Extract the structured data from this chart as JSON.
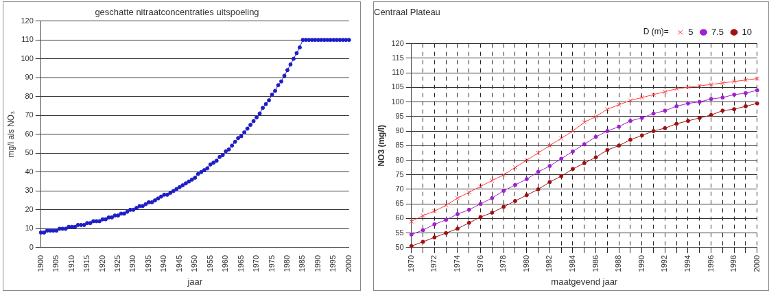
{
  "chart_data": [
    {
      "type": "line",
      "title": "geschatte nitraatconcentraties uitspoeling",
      "xlabel": "jaar",
      "ylabel": "mg/l als NO₃",
      "marker": "circle",
      "grid": "y",
      "xlim": [
        1900,
        2000
      ],
      "xticks": [
        1900,
        1905,
        1910,
        1915,
        1920,
        1925,
        1930,
        1935,
        1940,
        1945,
        1950,
        1955,
        1960,
        1965,
        1970,
        1975,
        1980,
        1985,
        1990,
        1995,
        2000
      ],
      "ylim": [
        0,
        120
      ],
      "yticks": [
        0,
        10,
        20,
        30,
        40,
        50,
        60,
        70,
        80,
        90,
        100,
        110,
        120
      ],
      "x": [
        1900,
        1901,
        1902,
        1903,
        1904,
        1905,
        1906,
        1907,
        1908,
        1909,
        1910,
        1911,
        1912,
        1913,
        1914,
        1915,
        1916,
        1917,
        1918,
        1919,
        1920,
        1921,
        1922,
        1923,
        1924,
        1925,
        1926,
        1927,
        1928,
        1929,
        1930,
        1931,
        1932,
        1933,
        1934,
        1935,
        1936,
        1937,
        1938,
        1939,
        1940,
        1941,
        1942,
        1943,
        1944,
        1945,
        1946,
        1947,
        1948,
        1949,
        1950,
        1951,
        1952,
        1953,
        1954,
        1955,
        1956,
        1957,
        1958,
        1959,
        1960,
        1961,
        1962,
        1963,
        1964,
        1965,
        1966,
        1967,
        1968,
        1969,
        1970,
        1971,
        1972,
        1973,
        1974,
        1975,
        1976,
        1977,
        1978,
        1979,
        1980,
        1981,
        1982,
        1983,
        1984,
        1985,
        1986,
        1987,
        1988,
        1989,
        1990,
        1991,
        1992,
        1993,
        1994,
        1995,
        1996,
        1997,
        1998,
        1999,
        2000
      ],
      "series": [
        {
          "color": "#1e1ec8",
          "values": [
            8,
            8,
            9,
            9,
            9,
            9,
            10,
            10,
            10,
            11,
            11,
            11,
            12,
            12,
            12,
            13,
            13,
            14,
            14,
            14,
            15,
            15,
            16,
            16,
            17,
            17,
            18,
            18,
            19,
            20,
            20,
            21,
            22,
            22,
            23,
            24,
            24,
            25,
            26,
            27,
            28,
            28,
            29,
            30,
            31,
            32,
            33,
            34,
            35,
            36,
            37,
            39,
            40,
            41,
            42,
            44,
            45,
            46,
            48,
            49,
            51,
            52,
            54,
            56,
            58,
            59,
            61,
            63,
            65,
            67,
            69,
            71,
            74,
            76,
            78,
            81,
            83,
            86,
            88,
            91,
            94,
            97,
            100,
            103,
            106,
            110,
            110,
            110,
            110,
            110,
            110,
            110,
            110,
            110,
            110,
            110,
            110,
            110,
            110,
            110,
            110
          ]
        }
      ]
    },
    {
      "type": "line",
      "title": "Centraal Plateau",
      "xlabel": "maatgevend jaar",
      "ylabel": "NO3 (mg/l)",
      "legend_title": "D (m)=",
      "legend": "top right",
      "grid": true,
      "xlim": [
        1970,
        2000
      ],
      "xticks": [
        1970,
        {
          "value": 1971,
          "label": null
        },
        1972,
        {
          "value": 1973,
          "label": null
        },
        1974,
        {
          "value": 1975,
          "label": null
        },
        1976,
        {
          "value": 1977,
          "label": null
        },
        1978,
        {
          "value": 1979,
          "label": null
        },
        1980,
        {
          "value": 1981,
          "label": null
        },
        1982,
        {
          "value": 1983,
          "label": null
        },
        1984,
        {
          "value": 1985,
          "label": null
        },
        1986,
        {
          "value": 1987,
          "label": null
        },
        1988,
        {
          "value": 1989,
          "label": null
        },
        1990,
        {
          "value": 1991,
          "label": null
        },
        1992,
        {
          "value": 1993,
          "label": null
        },
        1994,
        {
          "value": 1995,
          "label": null
        },
        1996,
        {
          "value": 1997,
          "label": null
        },
        1998,
        {
          "value": 1999,
          "label": null
        },
        2000
      ],
      "ylim": [
        50,
        120
      ],
      "yticks": [
        50,
        55,
        60,
        65,
        70,
        75,
        80,
        85,
        90,
        95,
        100,
        105,
        110,
        115,
        120
      ],
      "x": [
        1970,
        1971,
        1972,
        1973,
        1974,
        1975,
        1976,
        1977,
        1978,
        1979,
        1980,
        1981,
        1982,
        1983,
        1984,
        1985,
        1986,
        1987,
        1988,
        1989,
        1990,
        1991,
        1992,
        1993,
        1994,
        1995,
        1996,
        1997,
        1998,
        1999,
        2000
      ],
      "series": [
        {
          "name": "5",
          "color": "#ff3c3c",
          "marker": "cross",
          "values": [
            59,
            61,
            62.5,
            64.5,
            67,
            69,
            71,
            73,
            75,
            77.5,
            80,
            82.5,
            85,
            87.5,
            90,
            93,
            95,
            97.5,
            99,
            100.5,
            101.5,
            102.5,
            103.5,
            104.5,
            105,
            105.5,
            106,
            106.5,
            107,
            107.5,
            108
          ]
        },
        {
          "name": "7.5",
          "color": "#a020d0",
          "marker": "circle",
          "values": [
            54.5,
            56,
            58,
            59.5,
            61.5,
            63,
            65,
            67,
            69.5,
            71.5,
            73.5,
            76,
            78,
            80.5,
            83,
            85.5,
            88,
            90,
            91.5,
            93.5,
            94.5,
            96,
            97,
            98.5,
            99.5,
            100,
            101,
            101.5,
            102.5,
            103,
            104
          ]
        },
        {
          "name": "10",
          "color": "#a01010",
          "marker": "circle",
          "values": [
            50.5,
            52,
            53.5,
            55,
            56.5,
            58.5,
            60.5,
            62,
            64,
            66,
            68,
            70,
            72.5,
            74.5,
            77,
            79,
            81,
            83.5,
            85,
            87,
            88.5,
            90,
            91,
            92.5,
            93.5,
            94.5,
            95.5,
            97,
            97.5,
            98.5,
            99.5
          ]
        }
      ]
    }
  ]
}
